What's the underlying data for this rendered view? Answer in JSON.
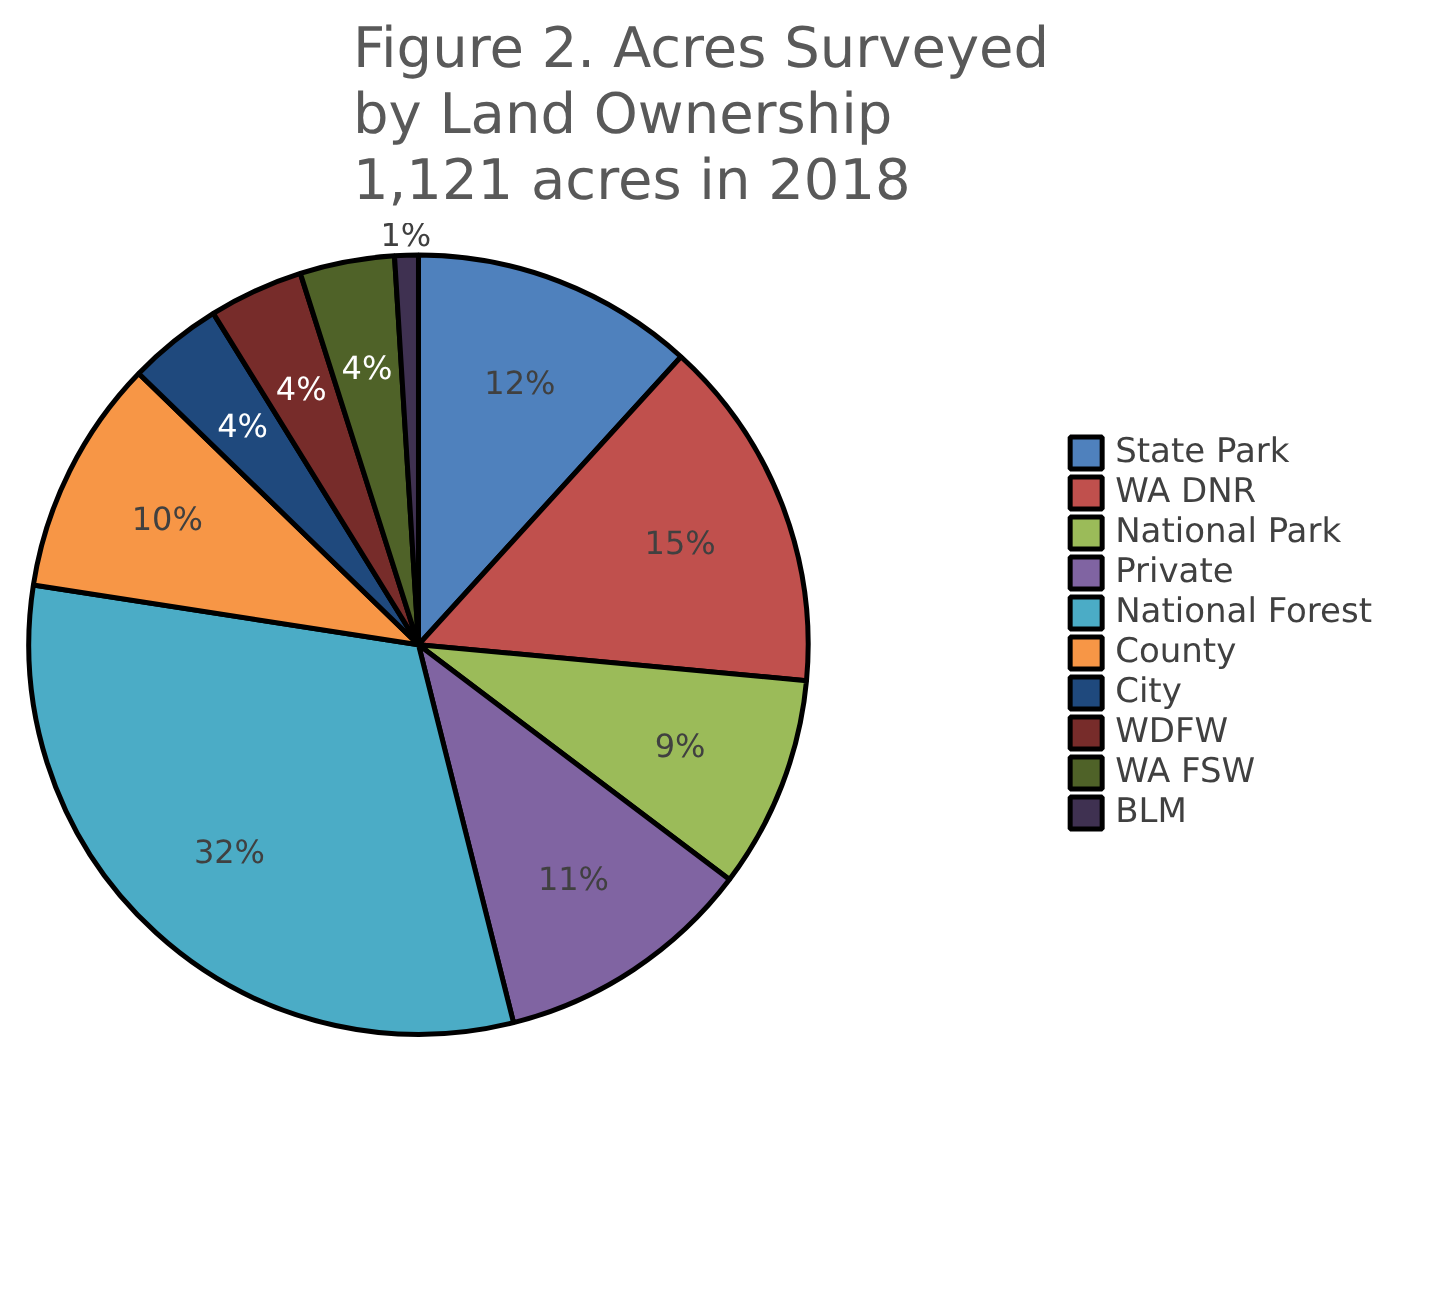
{
  "chart_data": {
    "type": "pie",
    "title": "Figure 2. Acres Surveyed\nby Land Ownership\n1,121 acres in 2018",
    "categories": [
      "State Park",
      "WA DNR",
      "National Park",
      "Private",
      "National Forest",
      "County",
      "City",
      "WDFW",
      "WA FSW",
      "BLM"
    ],
    "values": [
      12,
      15,
      9,
      11,
      32,
      10,
      4,
      4,
      4,
      1
    ],
    "colors": [
      "#4f81bd",
      "#c0504d",
      "#9bbb59",
      "#8064a2",
      "#4bacc6",
      "#f79646",
      "#1f497d",
      "#772c2a",
      "#4f6228",
      "#3f3151"
    ],
    "value_labels": [
      "12%",
      "15%",
      "9%",
      "11%",
      "32%",
      "10%",
      "4%",
      "4%",
      "4%",
      "1%"
    ],
    "legend": "right"
  }
}
